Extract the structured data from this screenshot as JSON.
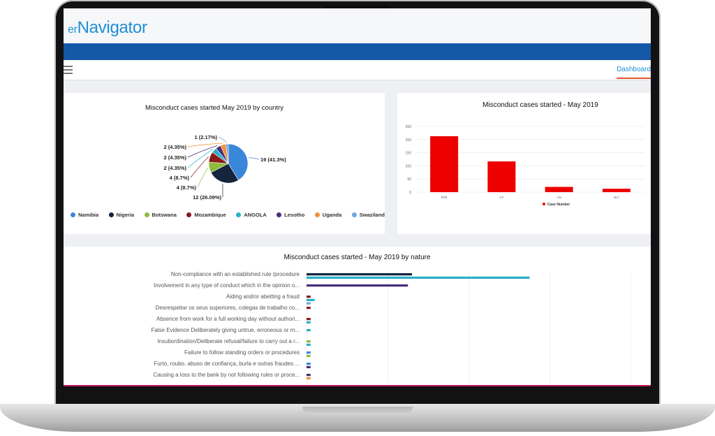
{
  "app": {
    "logo_prefix": "er",
    "logo_main": "Navigator"
  },
  "nav": {
    "dashboard_label": "Dashboard"
  },
  "colors": {
    "brand_blue": "#1558a8",
    "accent": "#1e8fd6",
    "bar_red": "#ee0000"
  },
  "charts": {
    "pie_title": "Misconduct cases started May 2019 by country",
    "bar_title": "Misconduct cases started - May 2019",
    "nature_title": "Misconduct cases started - May 2019 by nature"
  },
  "chart_data": [
    {
      "type": "pie",
      "title": "Misconduct cases started May 2019 by country",
      "slices": [
        {
          "name": "Namibia",
          "value": 19,
          "label": "19 (41.3%)",
          "color": "#3a87d9"
        },
        {
          "name": "Nigeria",
          "value": 12,
          "label": "12 (26.09%)",
          "color": "#15253d"
        },
        {
          "name": "Botswana",
          "value": 4,
          "label": "4 (8.7%)",
          "color": "#8dbb3c"
        },
        {
          "name": "Mozambique",
          "value": 4,
          "label": "4 (8.7%)",
          "color": "#8b1a1a"
        },
        {
          "name": "ANGOLA",
          "value": 2,
          "label": "2 (4.35%)",
          "color": "#2ab0c8"
        },
        {
          "name": "Lesotho",
          "value": 2,
          "label": "2 (4.35%)",
          "color": "#4a2d7a"
        },
        {
          "name": "Uganda",
          "value": 2,
          "label": "2 (4.35%)",
          "color": "#f0903a"
        },
        {
          "name": "Swaziland",
          "value": 1,
          "label": "1 (2.17%)",
          "color": "#6fa8dc"
        }
      ],
      "legend_placement": "bottom"
    },
    {
      "type": "bar",
      "title": "Misconduct cases started - May 2019",
      "categories": [
        "FRE",
        "CF",
        "CN",
        "NLT"
      ],
      "series": [
        {
          "name": "Case Number",
          "values": [
            213,
            117,
            20,
            13
          ]
        }
      ],
      "ylim": [
        0,
        250
      ],
      "yticks": [
        0,
        50,
        100,
        150,
        200,
        250
      ],
      "legend_placement": "bottom",
      "grid": true
    },
    {
      "type": "bar",
      "orientation": "horizontal",
      "title": "Misconduct cases started - May 2019 by nature",
      "labels": [
        "Non-compliance with an established rule /procedure",
        "Involvement in any type of conduct which in the opinion o...",
        "Aiding and/or abetting a fraud",
        "Desrespeitar os seus superiores, colegas de trabalho co...",
        "Absence from work for a full working day without authori...",
        "False Evidence Deliberately giving untrue, erroneous or m...",
        "Insubordination/Deliberate refusal/failure to carry out a r...",
        "Failure to follow standing orders or procedures",
        "Furto, roubo, abuso de confiança, burla e outras fraudes ...",
        "Causing a loss to the bank by not following rules or proce..."
      ],
      "series": [
        {
          "name": "Namibia",
          "color": "#3a87d9",
          "values": [
            0,
            0,
            0,
            0,
            0,
            0,
            0,
            1,
            1,
            0
          ]
        },
        {
          "name": "Nigeria",
          "color": "#15253d",
          "values": [
            26,
            0,
            0,
            0,
            0,
            0,
            0,
            0,
            0,
            0
          ]
        },
        {
          "name": "Botswana",
          "color": "#8dbb3c",
          "values": [
            0,
            0,
            0,
            0,
            0,
            0,
            1,
            1,
            0,
            0
          ]
        },
        {
          "name": "Mozambique",
          "color": "#8b1a1a",
          "values": [
            0,
            0,
            1,
            1,
            1,
            0,
            0,
            0,
            0,
            0
          ]
        },
        {
          "name": "ANGOLA",
          "color": "#2ab0c8",
          "values": [
            55,
            0,
            2,
            0,
            1,
            1,
            1,
            0,
            0,
            0
          ]
        },
        {
          "name": "Lesotho",
          "color": "#4a2d7a",
          "values": [
            0,
            25,
            0,
            0,
            0,
            0,
            0,
            0,
            1,
            1
          ]
        },
        {
          "name": "Uganda",
          "color": "#f0903a",
          "values": [
            0,
            0,
            0,
            0,
            0,
            0,
            0,
            0,
            0,
            1
          ]
        },
        {
          "name": "Swaziland",
          "color": "#6fa8dc",
          "values": [
            0,
            0,
            1,
            0,
            0,
            0,
            0,
            0,
            0,
            0
          ]
        }
      ],
      "grid": true
    }
  ]
}
